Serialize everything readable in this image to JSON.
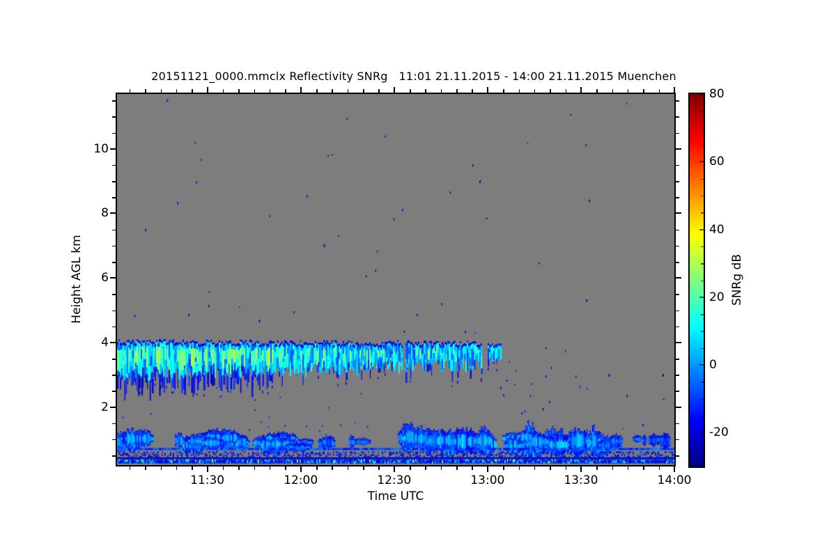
{
  "title": "20151121_0000.mmclx Reflectivity SNRg   11:01 21.11.2015 - 14:00 21.11.2015 Muenchen",
  "x_axis": {
    "label": "Time UTC",
    "start": "11:01",
    "end": "14:00",
    "duration_min": 179,
    "major_ticks": [
      {
        "label": "11:30",
        "t_min": 29
      },
      {
        "label": "12:00",
        "t_min": 59
      },
      {
        "label": "12:30",
        "t_min": 89
      },
      {
        "label": "13:00",
        "t_min": 119
      },
      {
        "label": "13:30",
        "t_min": 149
      },
      {
        "label": "14:00",
        "t_min": 179
      }
    ],
    "minor_step_min": 5
  },
  "y_axis": {
    "label": "Height AGL km",
    "min_km": 0.2,
    "max_km": 11.7,
    "major_ticks": [
      2,
      4,
      6,
      8,
      10
    ],
    "minor_step_km": 0.5
  },
  "colorbar": {
    "label": "SNRg dB",
    "min": -30,
    "max": 80,
    "major_ticks": [
      80,
      60,
      40,
      20,
      0,
      -20
    ],
    "minor_step": 5,
    "colormap": "jet"
  },
  "colors": {
    "page_bg": "#ffffff",
    "no_signal_bg": "#7d7d7d",
    "axis": "#000000"
  },
  "chart_data": {
    "type": "heatmap",
    "title": "20151121_0000.mmclx Reflectivity SNRg   11:01 21.11.2015 - 14:00 21.11.2015 Muenchen",
    "xlabel": "Time UTC",
    "ylabel": "Height AGL km",
    "value_label": "SNRg dB",
    "x_range_utc": [
      "11:01",
      "14:00"
    ],
    "y_range_km": [
      0.2,
      11.7
    ],
    "value_range_db": [
      -30,
      80
    ],
    "features": [
      {
        "feature": "mid-level cloud layer",
        "time_utc": "11:01-13:05",
        "height_km": [
          2.9,
          4.0
        ],
        "snr_db": [
          -10,
          30
        ],
        "note": "continuous stratiform layer with sharp top near 4 km; brightest pale-green cores (18-30 dB) before ~11:50; ragged virga streaks below base, deepest (to ~2.4 km) before 11:45; short gaps near 12:33 and 12:59"
      },
      {
        "feature": "boundary-layer echoes",
        "time_utc": "11:01-14:00",
        "height_km": [
          0.5,
          1.45
        ],
        "snr_db": [
          -18,
          10
        ],
        "note": "broken blue/cyan cumulus-like blobs near 0.7-1.1 km; deeper cells reaching ~1.45 km between 12:35 and 13:35; only sparse specks after ~13:35"
      },
      {
        "feature": "near-range artifact lines",
        "time_utc": "11:01-14:00",
        "height_km": [
          0.25,
          0.75
        ],
        "snr_db": [
          -28,
          30
        ],
        "note": "persistent horizontal lines: bright blue line ~0.73 km, speckled band 0.46-0.62 km, dark navy line ~0.44 km, thick blue band 0.25-0.39 km with bright cyan/green vertical speckles"
      },
      {
        "feature": "noise specks",
        "time_utc": "11:01-14:00",
        "height_km": [
          1.3,
          11.6
        ],
        "snr_db": [
          -26,
          -12
        ],
        "note": "isolated 1-2 px dark-blue false detections scattered over the gray no-signal background, slightly denser at 1.8-4 km after 13:05"
      }
    ],
    "render_layers": [
      {
        "name": "no-signal-background",
        "type": "bg",
        "color": "#7d7d7d"
      },
      {
        "name": "upper-noise-specks",
        "type": "specks",
        "seed": 11,
        "count": 42,
        "t": [
          1,
          178
        ],
        "h": [
          4.3,
          11.55
        ],
        "v": [
          -26,
          -14
        ],
        "size": [
          1,
          2,
          2,
          4
        ]
      },
      {
        "name": "mid-noise-specks-right",
        "type": "specks",
        "seed": 12,
        "count": 26,
        "t": [
          120,
          178
        ],
        "h": [
          1.8,
          4.1
        ],
        "v": [
          -26,
          -12
        ],
        "size": [
          1,
          2,
          2,
          4
        ]
      },
      {
        "name": "mid-noise-specks-left",
        "type": "specks",
        "seed": 13,
        "count": 10,
        "t": [
          1,
          119
        ],
        "h": [
          1.6,
          2.7
        ],
        "v": [
          -26,
          -14
        ],
        "size": [
          1,
          2,
          2,
          3
        ]
      },
      {
        "name": "low-noise-specks",
        "type": "specks",
        "seed": 14,
        "count": 16,
        "t": [
          1,
          178
        ],
        "h": [
          1.25,
          1.65
        ],
        "v": [
          -24,
          -10
        ],
        "size": [
          1,
          2,
          2,
          3
        ]
      },
      {
        "name": "midlevel-cloud-layer",
        "type": "cloud",
        "seed": 21,
        "t": [
          0,
          123.2
        ],
        "gaps": [
          [
            91.3,
            92.6
          ],
          [
            116.8,
            118.6
          ]
        ],
        "tail_t": 118.6,
        "top_km": [
          3.98,
          3.92
        ],
        "top_jitter": 0.09,
        "base_km": [
          2.98,
          3.32
        ],
        "base_jitter": 0.22,
        "values": [
          [
            3,
            -10,
            2
          ],
          [
            4,
            0,
            14
          ],
          [
            2,
            10,
            20
          ]
        ],
        "core_values": [
          18,
          30
        ],
        "core_prob": [
          0.5,
          0.12
        ],
        "core_t_end": 50,
        "fringe_v": -21,
        "strand_prob": [
          0.75,
          0.3
        ],
        "strand_depth_max": [
          0.65,
          0.3
        ],
        "strand_v": [
          -25,
          -9
        ]
      },
      {
        "name": "boundary-layer-echo-left",
        "type": "blobs",
        "seed": 31,
        "count": 26,
        "t": [
          0,
          55
        ],
        "hc": [
          0.78,
          1.05
        ],
        "rx_min": [
          1.2,
          6
        ],
        "ry_km": [
          0.12,
          0.3
        ],
        "v_edge": [
          -16,
          -4
        ],
        "v_core": [
          -2,
          9
        ]
      },
      {
        "name": "boundary-layer-echo-mid",
        "type": "blobs",
        "seed": 32,
        "count": 11,
        "t": [
          53,
          92
        ],
        "hc": [
          0.72,
          0.95
        ],
        "rx_min": [
          0.8,
          3.5
        ],
        "ry_km": [
          0.08,
          0.2
        ],
        "v_edge": [
          -18,
          -6
        ],
        "v_core": [
          -6,
          4
        ]
      },
      {
        "name": "boundary-layer-echo-right",
        "type": "blobs",
        "seed": 33,
        "count": 30,
        "t": [
          92,
          156
        ],
        "hc": [
          0.78,
          1.1
        ],
        "rx_min": [
          1.2,
          5.5
        ],
        "ry_km": [
          0.14,
          0.42
        ],
        "v_edge": [
          -16,
          -4
        ],
        "v_core": [
          -2,
          9
        ]
      },
      {
        "name": "boundary-layer-echo-far-right",
        "type": "blobs",
        "seed": 34,
        "count": 11,
        "t": [
          154,
          179
        ],
        "hc": [
          0.72,
          1.0
        ],
        "rx_min": [
          0.6,
          2.2
        ],
        "ry_km": [
          0.07,
          0.2
        ],
        "v_edge": [
          -18,
          -8
        ],
        "v_core": [
          -8,
          2
        ]
      },
      {
        "name": "artifact-line-upper",
        "type": "hline",
        "seed": 41,
        "h": 0.73,
        "px": 3,
        "v": -9,
        "v_var": 7
      },
      {
        "name": "artifact-speckle-band",
        "type": "speckband",
        "seed": 42,
        "h": [
          0.46,
          0.62
        ],
        "density": 0.42,
        "v": [
          -25,
          -6
        ]
      },
      {
        "name": "artifact-line-dark",
        "type": "hline",
        "seed": 43,
        "h": 0.44,
        "px": 2,
        "v": -27,
        "v_var": 2
      },
      {
        "name": "artifact-band-bottom",
        "type": "bottomband",
        "seed": 44,
        "h": [
          0.25,
          0.39
        ],
        "v_base": -12,
        "v_var": 5,
        "speckle_prob": 0.5,
        "speckle_v": [
          -4,
          30
        ],
        "dark_line_h": 0.33,
        "dark_v": -28
      }
    ]
  }
}
